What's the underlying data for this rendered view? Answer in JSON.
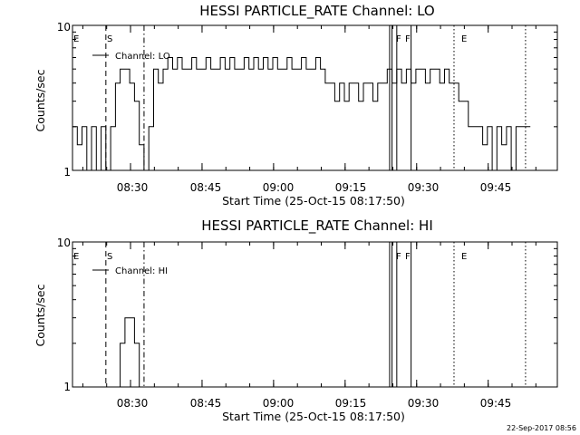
{
  "footer": {
    "timestamp": "22-Sep-2017 08:56"
  },
  "chart_data": [
    {
      "type": "line",
      "title": "HESSI PARTICLE_RATE Channel: LO",
      "xlabel": "Start Time (25-Oct-15 08:17:50)",
      "ylabel": "Counts/sec",
      "yscale": "log",
      "ylim": [
        1,
        10
      ],
      "xlim": [
        "08:17:50",
        "09:59:30"
      ],
      "ytick_labels": [
        "1",
        "10"
      ],
      "xtick_labels": [
        "08:30",
        "08:45",
        "09:00",
        "09:15",
        "09:30",
        "09:45"
      ],
      "legend": {
        "label": "Channel: LO",
        "position": "top-left"
      },
      "markers": [
        {
          "time": "08:17:50",
          "style": "dashed",
          "label": "E"
        },
        {
          "time": "08:24:50",
          "style": "dashed",
          "label": "S"
        },
        {
          "time": "08:32:50",
          "style": "dashdot",
          "label": ""
        },
        {
          "time": "09:24:20",
          "style": "solid",
          "label": "F"
        },
        {
          "time": "09:24:50",
          "style": "solid",
          "label": ""
        },
        {
          "time": "09:25:50",
          "style": "solid",
          "label": "F"
        },
        {
          "time": "09:28:50",
          "style": "solid",
          "label": ""
        },
        {
          "time": "09:37:50",
          "style": "dotted",
          "label": "E"
        },
        {
          "time": "09:52:50",
          "style": "dotted",
          "label": ""
        }
      ],
      "series": [
        {
          "name": "",
          "x": [
            "08:17:50",
            "08:18:50",
            "08:19:50",
            "08:20:50",
            "08:21:50",
            "08:22:50",
            "08:23:50",
            "08:24:50",
            "08:25:50",
            "08:26:50",
            "08:27:50",
            "08:28:50",
            "08:29:50",
            "08:30:50",
            "08:31:50",
            "08:32:50",
            "08:33:50",
            "08:34:50",
            "08:35:50",
            "08:36:50",
            "08:37:50",
            "08:38:50",
            "08:39:50",
            "08:40:50",
            "08:41:50",
            "08:42:50",
            "08:43:50",
            "08:44:50",
            "08:45:50",
            "08:46:50",
            "08:47:50",
            "08:48:50",
            "08:49:50",
            "08:50:50",
            "08:51:50",
            "08:52:50",
            "08:53:50",
            "08:54:50",
            "08:55:50",
            "08:56:50",
            "08:57:50",
            "08:58:50",
            "08:59:50",
            "09:00:50",
            "09:01:50",
            "09:02:50",
            "09:03:50",
            "09:04:50",
            "09:05:50",
            "09:06:50",
            "09:07:50",
            "09:08:50",
            "09:09:50",
            "09:10:50",
            "09:11:50",
            "09:12:50",
            "09:13:50",
            "09:14:50",
            "09:15:50",
            "09:16:50",
            "09:17:50",
            "09:18:50",
            "09:19:50",
            "09:20:50",
            "09:21:50",
            "09:22:50",
            "09:23:50",
            "09:24:50",
            "09:25:50",
            "09:26:50",
            "09:27:50",
            "09:28:50",
            "09:29:50",
            "09:30:50",
            "09:31:50",
            "09:32:50",
            "09:33:50",
            "09:34:50",
            "09:35:50",
            "09:36:50",
            "09:37:50",
            "09:38:50",
            "09:39:50",
            "09:40:50",
            "09:41:50",
            "09:42:50",
            "09:43:50",
            "09:44:50",
            "09:45:50",
            "09:46:50",
            "09:47:50",
            "09:48:50",
            "09:49:50",
            "09:50:50",
            "09:51:50",
            "09:52:50"
          ],
          "y": [
            2,
            1.5,
            2,
            1,
            2,
            1,
            2,
            1,
            2,
            4,
            5,
            5,
            4,
            3,
            1.5,
            1,
            2,
            5,
            4,
            5,
            6,
            5,
            6,
            5,
            5,
            6,
            5,
            5,
            6,
            5,
            5,
            6,
            5,
            6,
            5,
            5,
            6,
            5,
            6,
            5,
            6,
            5,
            6,
            5,
            5,
            6,
            5,
            5,
            6,
            5,
            5,
            6,
            5,
            4,
            4,
            3,
            4,
            3,
            4,
            4,
            3,
            4,
            4,
            3,
            4,
            4,
            5,
            4,
            5,
            4,
            5,
            4,
            5,
            5,
            4,
            5,
            5,
            4,
            5,
            4,
            4,
            3,
            3,
            2,
            2,
            2,
            1.5,
            2,
            1,
            2,
            1.5,
            2,
            1,
            2,
            2,
            2
          ]
        }
      ]
    },
    {
      "type": "line",
      "title": "HESSI PARTICLE_RATE Channel: HI",
      "xlabel": "Start Time (25-Oct-15 08:17:50)",
      "ylabel": "Counts/sec",
      "yscale": "log",
      "ylim": [
        1,
        10
      ],
      "xlim": [
        "08:17:50",
        "09:59:30"
      ],
      "ytick_labels": [
        "1",
        "10"
      ],
      "xtick_labels": [
        "08:30",
        "08:45",
        "09:00",
        "09:15",
        "09:30",
        "09:45"
      ],
      "legend": {
        "label": "Channel: HI",
        "position": "top-left"
      },
      "markers": [
        {
          "time": "08:17:50",
          "style": "dashed",
          "label": "E"
        },
        {
          "time": "08:24:50",
          "style": "dashed",
          "label": "S"
        },
        {
          "time": "08:32:50",
          "style": "dashdot",
          "label": ""
        },
        {
          "time": "09:24:20",
          "style": "solid",
          "label": "F"
        },
        {
          "time": "09:24:50",
          "style": "solid",
          "label": ""
        },
        {
          "time": "09:25:50",
          "style": "solid",
          "label": "F"
        },
        {
          "time": "09:28:50",
          "style": "solid",
          "label": ""
        },
        {
          "time": "09:37:50",
          "style": "dotted",
          "label": "E"
        },
        {
          "time": "09:52:50",
          "style": "dotted",
          "label": ""
        }
      ],
      "series": [
        {
          "name": "",
          "x": [
            "08:26:50",
            "08:27:50",
            "08:28:50",
            "08:29:50",
            "08:30:50",
            "08:31:50"
          ],
          "y": [
            1,
            2,
            3,
            3,
            2,
            1
          ]
        }
      ]
    }
  ]
}
